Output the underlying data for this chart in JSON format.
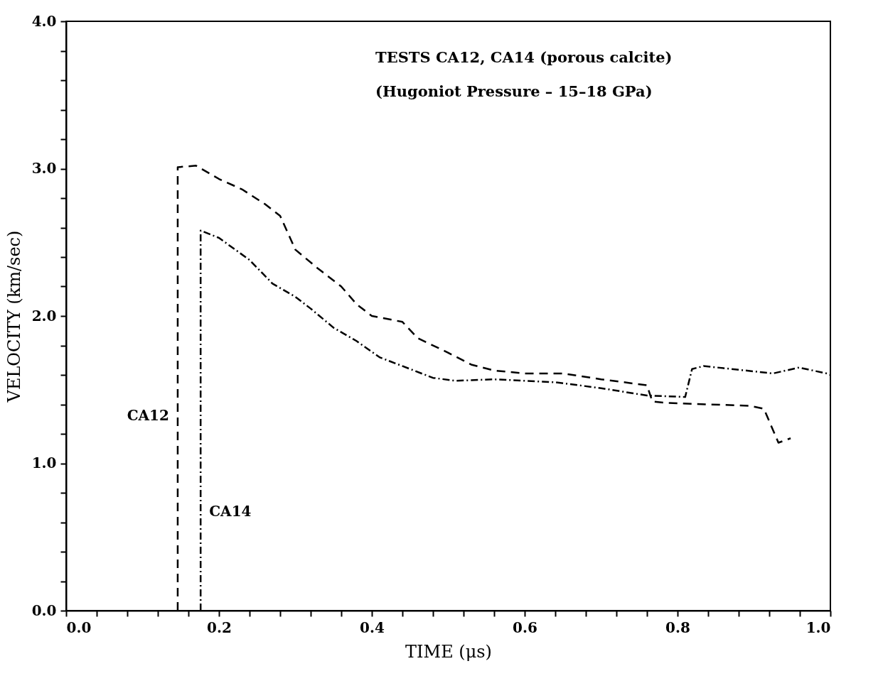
{
  "chart_data": {
    "type": "line",
    "xlabel": "TIME  (μs)",
    "ylabel": "VELOCITY  (km/sec)",
    "annotations": [
      "TESTS  CA12, CA14 (porous calcite)",
      "(Hugoniot Pressure – 15–18 GPa)"
    ],
    "xlim": [
      0,
      1
    ],
    "ylim": [
      0,
      4
    ],
    "xticks": [
      {
        "value": 0,
        "label": "0.0"
      },
      {
        "value": 0.04,
        "label": null
      },
      {
        "value": 0.08,
        "label": null
      },
      {
        "value": 0.12,
        "label": null
      },
      {
        "value": 0.16,
        "label": null
      },
      0.2,
      {
        "value": 0.24,
        "label": null
      },
      {
        "value": 0.28,
        "label": null
      },
      {
        "value": 0.32,
        "label": null
      },
      {
        "value": 0.36,
        "label": null
      },
      0.4,
      {
        "value": 0.44,
        "label": null
      },
      {
        "value": 0.48,
        "label": null
      },
      {
        "value": 0.52,
        "label": null
      },
      {
        "value": 0.56,
        "label": null
      },
      0.6,
      {
        "value": 0.64,
        "label": null
      },
      {
        "value": 0.68,
        "label": null
      },
      {
        "value": 0.72,
        "label": null
      },
      {
        "value": 0.76,
        "label": null
      },
      0.8,
      {
        "value": 0.84,
        "label": null
      },
      {
        "value": 0.88,
        "label": null
      },
      {
        "value": 0.92,
        "label": null
      },
      {
        "value": 0.96,
        "label": null
      },
      {
        "value": 1,
        "label": "1.0"
      }
    ],
    "yticks": [
      {
        "value": 0,
        "label": "0.0"
      },
      {
        "value": 0.2,
        "label": null
      },
      {
        "value": 0.4,
        "label": null
      },
      {
        "value": 0.6,
        "label": null
      },
      {
        "value": 0.8,
        "label": null
      },
      {
        "value": 1,
        "label": "1.0"
      },
      {
        "value": 1.2,
        "label": null
      },
      {
        "value": 1.4,
        "label": null
      },
      {
        "value": 1.6,
        "label": null
      },
      {
        "value": 1.8,
        "label": null
      },
      {
        "value": 2,
        "label": "2.0"
      },
      {
        "value": 2.2,
        "label": null
      },
      {
        "value": 2.4,
        "label": null
      },
      {
        "value": 2.6,
        "label": null
      },
      {
        "value": 2.8,
        "label": null
      },
      {
        "value": 3,
        "label": "3.0"
      },
      {
        "value": 3.2,
        "label": null
      },
      {
        "value": 3.4,
        "label": null
      },
      {
        "value": 3.6,
        "label": null
      },
      {
        "value": 3.8,
        "label": null
      },
      {
        "value": 4,
        "label": "4.0"
      }
    ],
    "series": [
      {
        "name": "CA12",
        "color": "#000000",
        "line_style": "dashed",
        "x": [
          0.146,
          0.146,
          0.17,
          0.2,
          0.23,
          0.26,
          0.28,
          0.3,
          0.33,
          0.36,
          0.38,
          0.4,
          0.44,
          0.46,
          0.5,
          0.53,
          0.56,
          0.6,
          0.65,
          0.7,
          0.76,
          0.767,
          0.785,
          0.895,
          0.913,
          0.932,
          0.948
        ],
        "values": [
          0,
          3.01,
          3.02,
          2.93,
          2.86,
          2.76,
          2.68,
          2.45,
          2.32,
          2.2,
          2.08,
          2.0,
          1.96,
          1.85,
          1.75,
          1.67,
          1.63,
          1.61,
          1.61,
          1.57,
          1.53,
          1.42,
          1.41,
          1.39,
          1.37,
          1.14,
          1.17
        ]
      },
      {
        "name": "CA14",
        "color": "#000000",
        "line_style": "dotted",
        "x": [
          0.176,
          0.176,
          0.2,
          0.24,
          0.27,
          0.3,
          0.32,
          0.35,
          0.38,
          0.41,
          0.45,
          0.48,
          0.51,
          0.56,
          0.64,
          0.7,
          0.76,
          0.81,
          0.819,
          0.834,
          0.907,
          0.925,
          0.959,
          0.995,
          1.0
        ],
        "values": [
          0,
          2.58,
          2.53,
          2.38,
          2.22,
          2.13,
          2.05,
          1.92,
          1.83,
          1.72,
          1.64,
          1.58,
          1.56,
          1.57,
          1.55,
          1.51,
          1.46,
          1.45,
          1.64,
          1.66,
          1.62,
          1.61,
          1.65,
          1.61,
          1.6
        ]
      }
    ]
  }
}
